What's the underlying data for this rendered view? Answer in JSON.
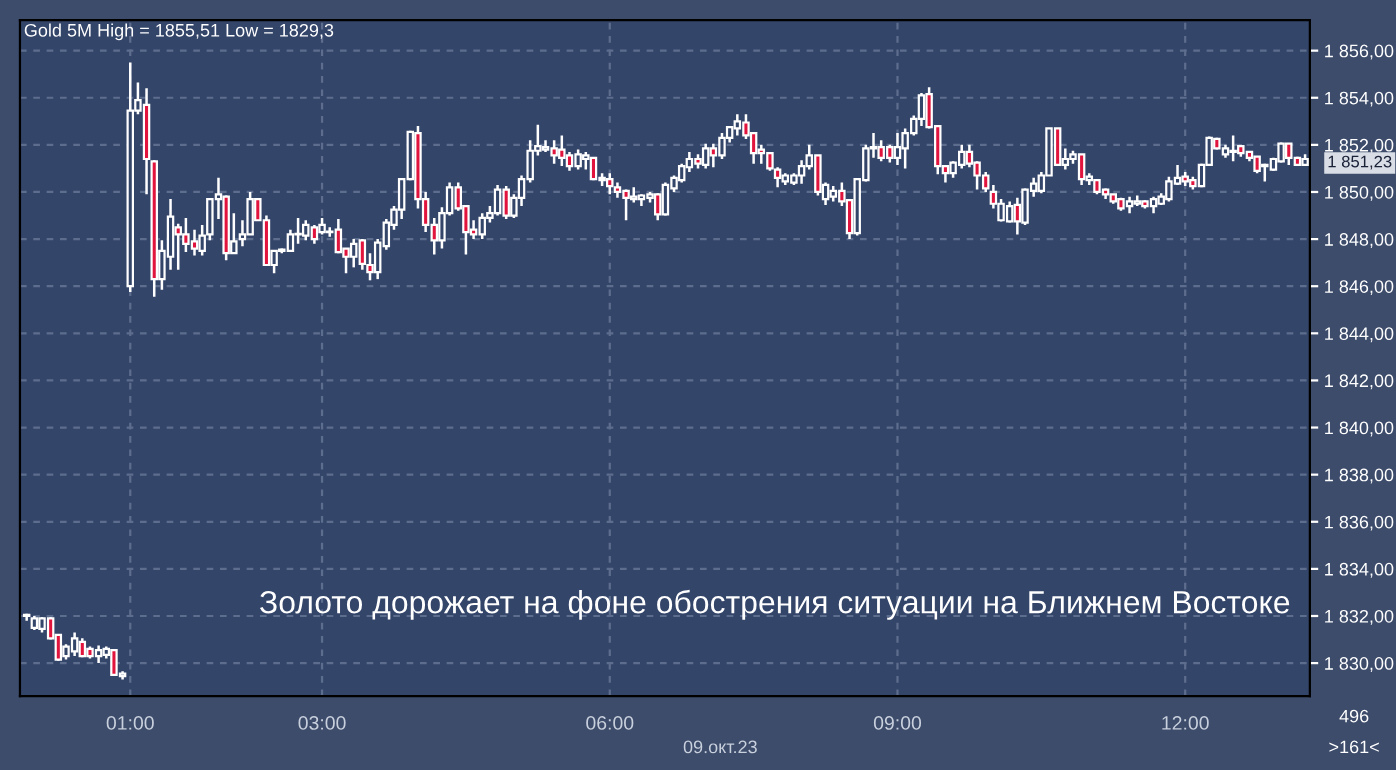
{
  "chart_data": {
    "type": "candlestick",
    "title": "Gold 5M High = 1855,51 Low = 1829,3",
    "annotations": [
      "Золото дорожает на фоне обострения ситуации на Ближнем Востоке",
      "09.окт.23",
      "496",
      ">161<",
      {
        "text": "1 851,23",
        "x": 13.25,
        "y": 1851.23
      }
    ],
    "x": [
      -0.08,
      0.0,
      0.08,
      0.17,
      0.25,
      0.33,
      0.42,
      0.5,
      0.58,
      0.67,
      0.75,
      0.83,
      0.92,
      1.0,
      1.08,
      1.17,
      1.25,
      1.33,
      1.42,
      1.5,
      1.58,
      1.67,
      1.75,
      1.83,
      1.92,
      2.0,
      2.08,
      2.17,
      2.25,
      2.33,
      2.42,
      2.5,
      2.58,
      2.67,
      2.75,
      2.83,
      2.92,
      3.0,
      3.08,
      3.17,
      3.25,
      3.33,
      3.42,
      3.5,
      3.58,
      3.67,
      3.75,
      3.83,
      3.92,
      4.0,
      4.08,
      4.17,
      4.25,
      4.33,
      4.42,
      4.5,
      4.58,
      4.67,
      4.75,
      4.83,
      4.92,
      5.0,
      5.08,
      5.17,
      5.25,
      5.33,
      5.42,
      5.5,
      5.58,
      5.67,
      5.75,
      5.83,
      5.92,
      6.0,
      6.08,
      6.17,
      6.25,
      6.33,
      6.42,
      6.5,
      6.58,
      6.67,
      6.75,
      6.83,
      6.92,
      7.0,
      7.08,
      7.17,
      7.25,
      7.33,
      7.42,
      7.5,
      7.58,
      7.67,
      7.75,
      7.83,
      7.92,
      8.0,
      8.08,
      8.17,
      8.25,
      8.33,
      8.42,
      8.5,
      8.58,
      8.67,
      8.75,
      8.83,
      8.92,
      9.0,
      9.08,
      9.17,
      9.25,
      9.33,
      9.42,
      9.5,
      9.58,
      9.67,
      9.75,
      9.83,
      9.92,
      10.0,
      10.08,
      10.17,
      10.25,
      10.33,
      10.42,
      10.5,
      10.58,
      10.67,
      10.75,
      10.83,
      10.92,
      11.0,
      11.08,
      11.17,
      11.25,
      11.33,
      11.42,
      11.5,
      11.58,
      11.67,
      11.75,
      11.83,
      11.92,
      12.0,
      12.08,
      12.17,
      12.25,
      12.33,
      12.42,
      12.5,
      12.58,
      12.67,
      12.75,
      12.83,
      12.92,
      13.0,
      13.08,
      13.17,
      13.25
    ],
    "ohlc": [
      [
        1832.0,
        1832.1,
        1831.8,
        1832.05
      ],
      [
        1831.5,
        1832.0,
        1831.4,
        1831.9
      ],
      [
        1831.45,
        1831.95,
        1831.3,
        1831.9
      ],
      [
        1831.9,
        1831.95,
        1831.0,
        1831.05
      ],
      [
        1831.2,
        1831.2,
        1830.1,
        1830.15
      ],
      [
        1830.3,
        1830.8,
        1830.15,
        1830.7
      ],
      [
        1830.5,
        1831.3,
        1830.3,
        1831.05
      ],
      [
        1830.9,
        1831.05,
        1830.25,
        1830.3
      ],
      [
        1830.6,
        1830.7,
        1830.2,
        1830.3
      ],
      [
        1830.3,
        1830.75,
        1830.0,
        1830.55
      ],
      [
        1830.35,
        1830.7,
        1830.2,
        1830.6
      ],
      [
        1830.55,
        1830.6,
        1829.45,
        1829.5
      ],
      [
        1829.45,
        1829.65,
        1829.3,
        1829.55
      ],
      [
        1846.0,
        1855.5,
        1845.75,
        1853.45
      ],
      [
        1853.45,
        1854.65,
        1853.3,
        1853.9
      ],
      [
        1853.7,
        1854.4,
        1849.9,
        1851.4
      ],
      [
        1851.3,
        1851.35,
        1845.55,
        1846.3
      ],
      [
        1846.3,
        1847.95,
        1845.85,
        1847.5
      ],
      [
        1847.25,
        1849.7,
        1846.7,
        1848.95
      ],
      [
        1848.5,
        1848.65,
        1846.7,
        1848.2
      ],
      [
        1848.2,
        1848.9,
        1847.45,
        1847.8
      ],
      [
        1847.9,
        1848.4,
        1847.3,
        1847.6
      ],
      [
        1847.5,
        1848.6,
        1847.3,
        1848.15
      ],
      [
        1848.2,
        1849.7,
        1847.95,
        1849.7
      ],
      [
        1849.7,
        1850.6,
        1848.85,
        1849.9
      ],
      [
        1849.8,
        1849.85,
        1847.1,
        1847.4
      ],
      [
        1847.4,
        1849.1,
        1847.4,
        1847.9
      ],
      [
        1848.0,
        1848.8,
        1847.7,
        1848.2
      ],
      [
        1848.2,
        1850.0,
        1848.2,
        1849.7
      ],
      [
        1849.7,
        1849.7,
        1848.8,
        1848.8
      ],
      [
        1848.8,
        1849.0,
        1846.9,
        1846.9
      ],
      [
        1846.9,
        1847.5,
        1846.55,
        1847.5
      ],
      [
        1847.5,
        1847.6,
        1847.4,
        1847.55
      ],
      [
        1847.5,
        1848.4,
        1847.45,
        1848.2
      ],
      [
        1848.2,
        1848.9,
        1847.8,
        1848.2
      ],
      [
        1848.15,
        1848.8,
        1847.95,
        1848.6
      ],
      [
        1848.5,
        1848.6,
        1847.8,
        1848.0
      ],
      [
        1848.3,
        1848.9,
        1848.2,
        1848.6
      ],
      [
        1848.3,
        1848.5,
        1848.1,
        1848.3
      ],
      [
        1848.4,
        1848.85,
        1847.4,
        1847.45
      ],
      [
        1847.6,
        1847.6,
        1846.55,
        1847.25
      ],
      [
        1847.25,
        1848.0,
        1846.8,
        1847.8
      ],
      [
        1847.95,
        1848.0,
        1846.7,
        1846.95
      ],
      [
        1846.9,
        1847.4,
        1846.25,
        1846.6
      ],
      [
        1846.6,
        1848.0,
        1846.3,
        1847.85
      ],
      [
        1847.7,
        1848.85,
        1847.55,
        1848.7
      ],
      [
        1848.6,
        1849.4,
        1848.4,
        1849.25
      ],
      [
        1849.25,
        1850.55,
        1848.85,
        1850.55
      ],
      [
        1850.55,
        1852.6,
        1850.5,
        1852.55
      ],
      [
        1852.5,
        1852.8,
        1849.3,
        1849.7
      ],
      [
        1849.7,
        1850.0,
        1848.3,
        1848.6
      ],
      [
        1848.6,
        1848.9,
        1847.35,
        1847.95
      ],
      [
        1847.95,
        1849.35,
        1847.6,
        1849.1
      ],
      [
        1849.1,
        1850.4,
        1849.0,
        1850.2
      ],
      [
        1850.2,
        1850.4,
        1849.2,
        1849.3
      ],
      [
        1849.4,
        1849.4,
        1847.35,
        1848.3
      ],
      [
        1848.4,
        1848.8,
        1848.0,
        1848.2
      ],
      [
        1848.2,
        1849.1,
        1848.0,
        1848.9
      ],
      [
        1848.9,
        1849.4,
        1848.7,
        1849.1
      ],
      [
        1849.1,
        1850.3,
        1849.0,
        1850.1
      ],
      [
        1850.1,
        1850.25,
        1848.85,
        1849.0
      ],
      [
        1849.0,
        1849.9,
        1848.9,
        1849.75
      ],
      [
        1849.75,
        1850.7,
        1849.4,
        1850.55
      ],
      [
        1850.55,
        1852.2,
        1850.4,
        1851.75
      ],
      [
        1851.75,
        1852.85,
        1851.55,
        1851.95
      ],
      [
        1851.8,
        1852.2,
        1851.7,
        1851.9
      ],
      [
        1851.85,
        1852.2,
        1851.2,
        1851.55
      ],
      [
        1851.8,
        1852.4,
        1851.1,
        1851.45
      ],
      [
        1851.55,
        1851.7,
        1850.9,
        1851.1
      ],
      [
        1851.1,
        1851.8,
        1850.95,
        1851.6
      ],
      [
        1851.4,
        1851.7,
        1850.95,
        1851.55
      ],
      [
        1851.45,
        1851.45,
        1850.5,
        1850.55
      ],
      [
        1850.6,
        1850.8,
        1850.25,
        1850.5
      ],
      [
        1850.55,
        1850.8,
        1849.9,
        1850.25
      ],
      [
        1850.2,
        1850.4,
        1849.75,
        1850.0
      ],
      [
        1850.05,
        1850.1,
        1848.8,
        1849.75
      ],
      [
        1849.7,
        1850.2,
        1849.55,
        1849.8
      ],
      [
        1849.7,
        1849.9,
        1849.4,
        1849.85
      ],
      [
        1849.75,
        1850.0,
        1849.55,
        1849.9
      ],
      [
        1849.9,
        1849.95,
        1848.8,
        1849.05
      ],
      [
        1849.05,
        1850.4,
        1849.0,
        1850.3
      ],
      [
        1850.15,
        1850.7,
        1850.0,
        1850.6
      ],
      [
        1850.5,
        1851.2,
        1850.4,
        1851.1
      ],
      [
        1851.05,
        1851.7,
        1850.85,
        1851.4
      ],
      [
        1851.4,
        1851.6,
        1851.0,
        1851.2
      ],
      [
        1851.15,
        1852.05,
        1851.0,
        1851.85
      ],
      [
        1851.85,
        1852.05,
        1851.05,
        1851.55
      ],
      [
        1851.55,
        1852.5,
        1851.4,
        1852.3
      ],
      [
        1852.3,
        1852.8,
        1852.1,
        1852.75
      ],
      [
        1852.7,
        1853.3,
        1852.4,
        1853.0
      ],
      [
        1852.95,
        1853.3,
        1852.25,
        1852.4
      ],
      [
        1852.5,
        1852.5,
        1851.2,
        1851.65
      ],
      [
        1851.8,
        1852.0,
        1851.2,
        1851.65
      ],
      [
        1851.65,
        1851.65,
        1850.9,
        1851.0
      ],
      [
        1850.95,
        1851.05,
        1850.2,
        1850.6
      ],
      [
        1850.45,
        1850.8,
        1850.3,
        1850.7
      ],
      [
        1850.4,
        1850.8,
        1850.3,
        1850.7
      ],
      [
        1850.7,
        1851.35,
        1850.35,
        1851.1
      ],
      [
        1851.1,
        1852.0,
        1850.95,
        1851.55
      ],
      [
        1851.55,
        1851.55,
        1849.85,
        1850.0
      ],
      [
        1849.7,
        1850.4,
        1849.45,
        1850.3
      ],
      [
        1849.8,
        1850.25,
        1849.6,
        1850.05
      ],
      [
        1850.05,
        1850.4,
        1849.4,
        1849.6
      ],
      [
        1849.65,
        1849.65,
        1848.0,
        1848.25
      ],
      [
        1848.25,
        1850.55,
        1848.15,
        1850.55
      ],
      [
        1850.5,
        1852.0,
        1850.45,
        1851.85
      ],
      [
        1851.85,
        1852.5,
        1851.45,
        1851.9
      ],
      [
        1851.9,
        1852.2,
        1851.3,
        1851.45
      ],
      [
        1851.9,
        1852.0,
        1851.25,
        1851.45
      ],
      [
        1851.45,
        1852.5,
        1851.15,
        1851.9
      ],
      [
        1851.85,
        1852.7,
        1851.0,
        1852.5
      ],
      [
        1852.5,
        1853.25,
        1852.4,
        1853.1
      ],
      [
        1853.1,
        1854.2,
        1852.8,
        1854.1
      ],
      [
        1854.15,
        1854.45,
        1852.7,
        1852.75
      ],
      [
        1852.8,
        1852.8,
        1850.75,
        1851.1
      ],
      [
        1851.1,
        1851.1,
        1850.4,
        1850.8
      ],
      [
        1850.8,
        1851.3,
        1850.6,
        1851.25
      ],
      [
        1851.15,
        1852.0,
        1851.0,
        1851.7
      ],
      [
        1851.7,
        1852.0,
        1851.05,
        1851.2
      ],
      [
        1851.25,
        1851.3,
        1850.1,
        1850.7
      ],
      [
        1850.7,
        1850.85,
        1850.0,
        1850.15
      ],
      [
        1850.0,
        1850.3,
        1849.3,
        1849.5
      ],
      [
        1848.8,
        1849.7,
        1848.75,
        1849.5
      ],
      [
        1848.75,
        1849.6,
        1848.7,
        1849.4
      ],
      [
        1849.45,
        1849.75,
        1848.2,
        1848.75
      ],
      [
        1848.7,
        1850.15,
        1848.6,
        1850.1
      ],
      [
        1850.05,
        1850.6,
        1849.8,
        1850.35
      ],
      [
        1850.05,
        1850.85,
        1849.95,
        1850.7
      ],
      [
        1850.7,
        1852.7,
        1850.7,
        1852.7
      ],
      [
        1852.7,
        1852.7,
        1851.1,
        1851.15
      ],
      [
        1851.15,
        1851.85,
        1850.95,
        1851.4
      ],
      [
        1851.4,
        1851.75,
        1851.2,
        1851.6
      ],
      [
        1851.6,
        1851.6,
        1850.3,
        1850.55
      ],
      [
        1850.5,
        1850.8,
        1850.3,
        1850.65
      ],
      [
        1850.5,
        1850.5,
        1849.9,
        1850.0
      ],
      [
        1850.1,
        1850.15,
        1849.7,
        1849.9
      ],
      [
        1849.9,
        1849.9,
        1849.5,
        1849.6
      ],
      [
        1849.7,
        1849.75,
        1849.2,
        1849.3
      ],
      [
        1849.4,
        1849.8,
        1849.1,
        1849.6
      ],
      [
        1849.5,
        1849.85,
        1849.4,
        1849.6
      ],
      [
        1849.6,
        1849.65,
        1849.3,
        1849.4
      ],
      [
        1849.4,
        1849.8,
        1849.1,
        1849.7
      ],
      [
        1849.5,
        1849.95,
        1849.45,
        1849.8
      ],
      [
        1849.7,
        1850.65,
        1849.6,
        1850.45
      ],
      [
        1850.35,
        1851.15,
        1850.3,
        1850.6
      ],
      [
        1850.65,
        1850.85,
        1850.25,
        1850.45
      ],
      [
        1850.5,
        1850.65,
        1850.1,
        1850.25
      ],
      [
        1850.25,
        1851.2,
        1850.2,
        1851.15
      ],
      [
        1851.15,
        1852.35,
        1851.1,
        1852.3
      ],
      [
        1852.25,
        1852.3,
        1851.8,
        1851.85
      ],
      [
        1851.6,
        1852.0,
        1851.45,
        1851.85
      ],
      [
        1851.7,
        1852.4,
        1851.3,
        1851.75
      ],
      [
        1851.95,
        1852.0,
        1851.5,
        1851.65
      ],
      [
        1851.7,
        1851.7,
        1851.3,
        1851.45
      ],
      [
        1851.5,
        1851.5,
        1850.8,
        1850.9
      ],
      [
        1851.1,
        1851.2,
        1850.45,
        1851.15
      ],
      [
        1850.95,
        1851.45,
        1850.9,
        1851.4
      ],
      [
        1851.3,
        1852.1,
        1851.25,
        1852.05
      ],
      [
        1852.05,
        1852.05,
        1851.15,
        1851.45
      ],
      [
        1851.45,
        1851.5,
        1851.1,
        1851.15
      ],
      [
        1851.15,
        1851.6,
        1851.15,
        1851.4
      ]
    ],
    "xlim": [
      -0.15,
      13.3
    ],
    "ylim": [
      1828.6,
      1857.3
    ],
    "xticks": [
      {
        "value": 1,
        "label": "01:00"
      },
      {
        "value": 3,
        "label": "03:00"
      },
      {
        "value": 6,
        "label": "06:00"
      },
      {
        "value": 9,
        "label": "09:00"
      },
      {
        "value": 12,
        "label": "12:00"
      }
    ],
    "yticks": [
      {
        "value": 1830,
        "label": "1 830,00"
      },
      {
        "value": 1832,
        "label": "1 832,00"
      },
      {
        "value": 1834,
        "label": "1 834,00"
      },
      {
        "value": 1836,
        "label": "1 836,00"
      },
      {
        "value": 1838,
        "label": "1 838,00"
      },
      {
        "value": 1840,
        "label": "1 840,00"
      },
      {
        "value": 1842,
        "label": "1 842,00"
      },
      {
        "value": 1844,
        "label": "1 844,00"
      },
      {
        "value": 1846,
        "label": "1 846,00"
      },
      {
        "value": 1848,
        "label": "1 848,00"
      },
      {
        "value": 1850,
        "label": "1 850,00"
      },
      {
        "value": 1852,
        "label": "1 852,00"
      },
      {
        "value": 1854,
        "label": "1 854,00"
      },
      {
        "value": 1856,
        "label": "1 856,00"
      }
    ],
    "grid": true
  }
}
